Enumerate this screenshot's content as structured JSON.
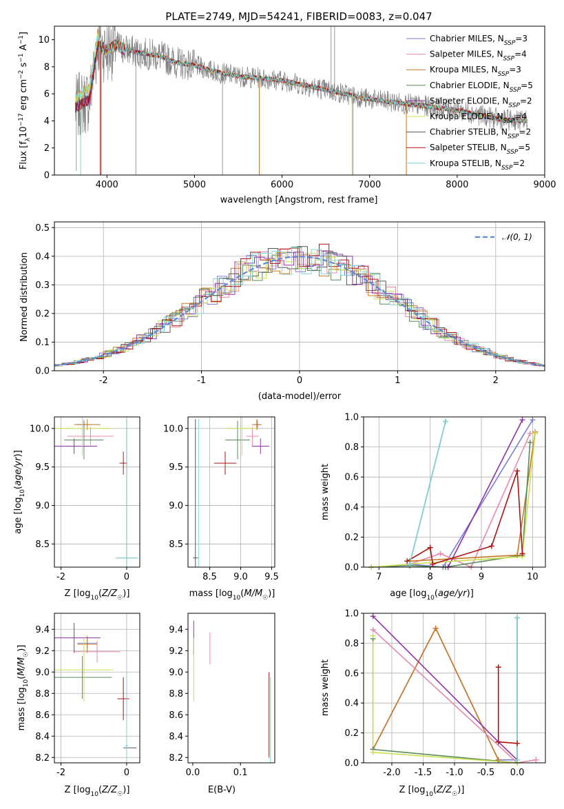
{
  "colors": {
    "Chabrier MILES": "#7b7bd9",
    "Salpeter MILES": "#e888a8",
    "Kroupa MILES": "#c87820",
    "Chabrier ELODIE": "#5a8a5a",
    "Salpeter ELODIE": "#9030a8",
    "Kroupa ELODIE": "#c8e050",
    "Chabrier STELIB": "#555555",
    "Salpeter STELIB": "#b01010",
    "Kroupa STELIB": "#80d8d8",
    "data": "#808080",
    "normal": "#5a8ad8"
  },
  "chart_data": [
    {
      "id": "spectrum",
      "type": "line",
      "title": "PLATE=2749, MJD=54241, FIBERID=0083, z=0.047",
      "xlabel": "wavelength [Angstrom, rest frame]",
      "ylabel": "Flux [f_λ10^-17 erg cm^-2 s^-1 A^-1]",
      "xlim": [
        3400,
        9000
      ],
      "ylim": [
        0,
        11
      ],
      "xticks": [
        4000,
        5000,
        6000,
        7000,
        8000,
        9000
      ],
      "yticks": [
        0,
        2,
        4,
        6,
        8,
        10
      ],
      "legend_position": "top-right",
      "legend": [
        {
          "model": "Chabrier MILES",
          "nssp": "3"
        },
        {
          "model": "Salpeter MILES",
          "nssp": "4"
        },
        {
          "model": "Kroupa MILES",
          "nssp": "3"
        },
        {
          "model": "Chabrier ELODIE",
          "nssp": "5"
        },
        {
          "model": "Salpeter ELODIE",
          "nssp": "2"
        },
        {
          "model": "Kroupa ELODIE",
          "nssp": "4"
        },
        {
          "model": "Chabrier STELIB",
          "nssp": "2"
        },
        {
          "model": "Salpeter STELIB",
          "nssp": "5"
        },
        {
          "model": "Kroupa STELIB",
          "nssp": "2"
        }
      ],
      "model_continuum": {
        "x": [
          3650,
          3700,
          3800,
          3900,
          3950,
          4000,
          4100,
          4200,
          4400,
          4600,
          4800,
          5000,
          5200,
          5500,
          6000,
          6500,
          7000,
          7500,
          8000,
          8500,
          8800
        ],
        "y": [
          5.0,
          5.2,
          5.6,
          9.8,
          9.4,
          9.2,
          9.6,
          9.3,
          9.0,
          8.8,
          8.3,
          8.1,
          7.7,
          7.3,
          7.0,
          6.3,
          5.6,
          5.2,
          4.8,
          4.1,
          4.0
        ]
      }
    },
    {
      "id": "residuals",
      "type": "bar",
      "xlabel": "(data-model)/error",
      "ylabel": "Normed distribution",
      "xlim": [
        -2.5,
        2.5
      ],
      "ylim": [
        0,
        0.52
      ],
      "xticks": [
        -2,
        -1,
        0,
        1,
        2
      ],
      "yticks": [
        0.0,
        0.1,
        0.2,
        0.3,
        0.4,
        0.5
      ],
      "legend_position": "top-right",
      "legend": "𝒩(0, 1)"
    },
    {
      "id": "age-vs-Z",
      "type": "scatter",
      "xlabel": "Z [log10(Z/Z☉)]",
      "ylabel": "age  [log10(age/yr)]",
      "xlim": [
        -2.2,
        0.4
      ],
      "ylim": [
        8.2,
        10.15
      ],
      "xticks": [
        -2,
        0
      ],
      "yticks": [
        8.5,
        9.0,
        9.5,
        10.0
      ],
      "points": [
        {
          "series": "Chabrier MILES",
          "x": -1.3,
          "y": 10.05,
          "ex": 0.2,
          "ey": 0.06
        },
        {
          "series": "Salpeter MILES",
          "x": -1.1,
          "y": 9.9,
          "ex": 0.7,
          "ey": 0.12
        },
        {
          "series": "Kroupa MILES",
          "x": -1.2,
          "y": 10.05,
          "ex": 0.4,
          "ey": 0.07
        },
        {
          "series": "Chabrier ELODIE",
          "x": -1.3,
          "y": 9.85,
          "ex": 0.6,
          "ey": 0.25
        },
        {
          "series": "Salpeter ELODIE",
          "x": -1.6,
          "y": 9.77,
          "ex": 0.7,
          "ey": 0.1
        },
        {
          "series": "Kroupa ELODIE",
          "x": -1.35,
          "y": 10.0,
          "ex": 0.9,
          "ey": 0.35
        },
        {
          "series": "Chabrier STELIB",
          "x": 0.0,
          "y": 8.32,
          "ex": 0.3,
          "ey": 1.8
        },
        {
          "series": "Salpeter STELIB",
          "x": -0.1,
          "y": 9.55,
          "ex": 0.12,
          "ey": 0.15
        },
        {
          "series": "Kroupa STELIB",
          "x": 0.0,
          "y": 8.32,
          "ex": 0.35,
          "ey": 1.8
        }
      ]
    },
    {
      "id": "age-vs-mass",
      "type": "scatter",
      "xlabel": "mass [log10(M/M☉)]",
      "ylabel": "",
      "xlim": [
        8.15,
        9.55
      ],
      "ylim": [
        8.2,
        10.15
      ],
      "xticks": [
        8.5,
        9.0,
        9.5
      ],
      "yticks": [
        8.5,
        9.0,
        9.5,
        10.0
      ],
      "points": [
        {
          "series": "Chabrier MILES",
          "x": 9.27,
          "y": 10.05,
          "ex": 0.05,
          "ey": 0.06
        },
        {
          "series": "Salpeter MILES",
          "x": 9.19,
          "y": 9.9,
          "ex": 0.1,
          "ey": 0.12
        },
        {
          "series": "Kroupa MILES",
          "x": 9.26,
          "y": 10.05,
          "ex": 0.08,
          "ey": 0.07
        },
        {
          "series": "Chabrier ELODIE",
          "x": 8.95,
          "y": 9.85,
          "ex": 0.2,
          "ey": 0.25
        },
        {
          "series": "Salpeter ELODIE",
          "x": 9.32,
          "y": 9.77,
          "ex": 0.14,
          "ey": 0.1
        },
        {
          "series": "Kroupa ELODIE",
          "x": 9.02,
          "y": 10.0,
          "ex": 0.25,
          "ey": 0.35
        },
        {
          "series": "Chabrier STELIB",
          "x": 8.27,
          "y": 8.32,
          "ex": 0.04,
          "ey": 1.8
        },
        {
          "series": "Salpeter STELIB",
          "x": 8.75,
          "y": 9.55,
          "ex": 0.18,
          "ey": 0.15
        },
        {
          "series": "Kroupa STELIB",
          "x": 8.32,
          "y": 8.32,
          "ex": 0.02,
          "ey": 1.8
        }
      ]
    },
    {
      "id": "weight-vs-age",
      "type": "line",
      "xlabel": "age  [log10(age/yr)]",
      "ylabel": "mass weight",
      "xlim": [
        6.7,
        10.25
      ],
      "ylim": [
        0,
        1
      ],
      "xticks": [
        7,
        8,
        9,
        10
      ],
      "yticks": [
        0.0,
        0.2,
        0.4,
        0.6,
        0.8,
        1.0
      ],
      "series": [
        {
          "name": "Chabrier MILES",
          "x": [
            7.6,
            8.25,
            10.0
          ],
          "y": [
            0.02,
            0.0,
            0.98
          ]
        },
        {
          "name": "Salpeter MILES",
          "x": [
            7.6,
            8.2,
            8.8,
            9.95
          ],
          "y": [
            0.02,
            0.09,
            0.0,
            0.89
          ]
        },
        {
          "name": "Kroupa MILES",
          "x": [
            7.6,
            9.7,
            10.05
          ],
          "y": [
            0.04,
            0.08,
            0.9
          ]
        },
        {
          "name": "Chabrier ELODIE",
          "x": [
            6.85,
            7.6,
            8.3,
            9.8,
            9.95
          ],
          "y": [
            0.0,
            0.01,
            0.0,
            0.08,
            0.83
          ]
        },
        {
          "name": "Salpeter ELODIE",
          "x": [
            8.35,
            9.8
          ],
          "y": [
            0.0,
            0.98
          ]
        },
        {
          "name": "Kroupa ELODIE",
          "x": [
            6.85,
            7.6,
            9.8,
            10.05
          ],
          "y": [
            0.0,
            0.02,
            0.07,
            0.89
          ]
        },
        {
          "name": "Chabrier STELIB",
          "x": [
            7.6,
            8.3
          ],
          "y": [
            0.02,
            0.97
          ]
        },
        {
          "name": "Salpeter STELIB",
          "x": [
            7.55,
            8.0,
            8.05,
            9.2,
            9.7,
            9.8
          ],
          "y": [
            0.04,
            0.13,
            0.02,
            0.14,
            0.64,
            0.09
          ]
        },
        {
          "name": "Kroupa STELIB",
          "x": [
            7.6,
            8.3
          ],
          "y": [
            0.02,
            0.97
          ]
        }
      ]
    },
    {
      "id": "mass-vs-Z",
      "type": "scatter",
      "xlabel": "Z [log10(Z/Z☉)]",
      "ylabel": "mass [log10(M/M☉)]",
      "xlim": [
        -2.2,
        0.4
      ],
      "ylim": [
        8.15,
        9.55
      ],
      "xticks": [
        -2,
        0
      ],
      "yticks": [
        8.2,
        8.4,
        8.6,
        8.8,
        9.0,
        9.2,
        9.4
      ],
      "points": [
        {
          "series": "Chabrier MILES",
          "x": -1.2,
          "y": 9.27,
          "ex": 0.3,
          "ey": 0.05
        },
        {
          "series": "Salpeter MILES",
          "x": -0.9,
          "y": 9.19,
          "ex": 0.7,
          "ey": 0.1
        },
        {
          "series": "Kroupa MILES",
          "x": -1.2,
          "y": 9.26,
          "ex": 0.3,
          "ey": 0.08
        },
        {
          "series": "Chabrier ELODIE",
          "x": -1.35,
          "y": 8.95,
          "ex": 0.9,
          "ey": 0.2
        },
        {
          "series": "Salpeter ELODIE",
          "x": -1.6,
          "y": 9.32,
          "ex": 0.8,
          "ey": 0.14
        },
        {
          "series": "Kroupa ELODIE",
          "x": -1.3,
          "y": 9.02,
          "ex": 0.9,
          "ey": 0.3
        },
        {
          "series": "Chabrier STELIB",
          "x": 0.1,
          "y": 8.29,
          "ex": 0.2,
          "ey": 0.0
        },
        {
          "series": "Salpeter STELIB",
          "x": -0.1,
          "y": 8.75,
          "ex": 0.18,
          "ey": 0.2
        },
        {
          "series": "Kroupa STELIB",
          "x": 0.0,
          "y": 8.31,
          "ex": 0.05,
          "ey": 0.7
        }
      ]
    },
    {
      "id": "mass-vs-ebv",
      "type": "scatter",
      "xlabel": "E(B-V)",
      "ylabel": "",
      "xlim": [
        -0.01,
        0.172
      ],
      "ylim": [
        8.15,
        9.55
      ],
      "xticks": [
        0.0,
        0.1
      ],
      "yticks": [
        8.2,
        8.4,
        8.6,
        8.8,
        9.0,
        9.2,
        9.4
      ],
      "points": [
        {
          "series": "Salpeter ELODIE",
          "x": 0.002,
          "y": 9.32,
          "ex": 0.0,
          "ey": 0.16
        },
        {
          "series": "Salpeter MILES",
          "x": 0.036,
          "y": 9.22,
          "ex": 0.0,
          "ey": 0.15
        },
        {
          "series": "Kroupa ELODIE",
          "x": 0.002,
          "y": 9.02,
          "ex": 0.0,
          "ey": 0.3
        },
        {
          "series": "Salpeter STELIB",
          "x": 0.16,
          "y": 8.6,
          "ex": 0.0,
          "ey": 0.4
        },
        {
          "series": "Kroupa STELIB",
          "x": 0.163,
          "y": 8.35,
          "ex": 0.0,
          "ey": 0.6
        }
      ]
    },
    {
      "id": "weight-vs-Z",
      "type": "line",
      "xlabel": "Z [log10(Z/Z☉)]",
      "ylabel": "mass weight",
      "xlim": [
        -2.45,
        0.45
      ],
      "ylim": [
        0,
        1
      ],
      "xticks": [
        -2.0,
        -1.5,
        -1.0,
        -0.5,
        0.0
      ],
      "yticks": [
        0.0,
        0.2,
        0.4,
        0.6,
        0.8,
        1.0
      ],
      "series": [
        {
          "name": "Chabrier MILES",
          "x": [
            -2.3,
            -1.3,
            -0.3,
            0.0
          ],
          "y": [
            0.09,
            0.9,
            0.02,
            0.02
          ]
        },
        {
          "name": "Kroupa MILES",
          "x": [
            -2.3,
            -1.3,
            -0.3
          ],
          "y": [
            0.09,
            0.9,
            0.02
          ]
        },
        {
          "name": "Salpeter MILES",
          "x": [
            -2.3,
            0.0,
            0.3
          ],
          "y": [
            0.89,
            0.0,
            0.02
          ]
        },
        {
          "name": "Salpeter ELODIE",
          "x": [
            -2.3,
            -0.3,
            0.0
          ],
          "y": [
            0.98,
            0.14,
            0.02
          ]
        },
        {
          "name": "Chabrier ELODIE",
          "x": [
            -2.3,
            -2.3,
            0.0
          ],
          "y": [
            0.83,
            0.09,
            0.0
          ]
        },
        {
          "name": "Kroupa ELODIE",
          "x": [
            -2.3,
            -2.3,
            0.0
          ],
          "y": [
            0.85,
            0.07,
            0.0
          ]
        },
        {
          "name": "Salpeter STELIB",
          "x": [
            -0.3,
            -0.3,
            0.0
          ],
          "y": [
            0.64,
            0.14,
            0.13
          ]
        },
        {
          "name": "Chabrier STELIB",
          "x": [
            0.0,
            0.0
          ],
          "y": [
            0.97,
            0.02
          ]
        },
        {
          "name": "Kroupa STELIB",
          "x": [
            0.0,
            0.0
          ],
          "y": [
            0.97,
            0.02
          ]
        }
      ]
    }
  ]
}
